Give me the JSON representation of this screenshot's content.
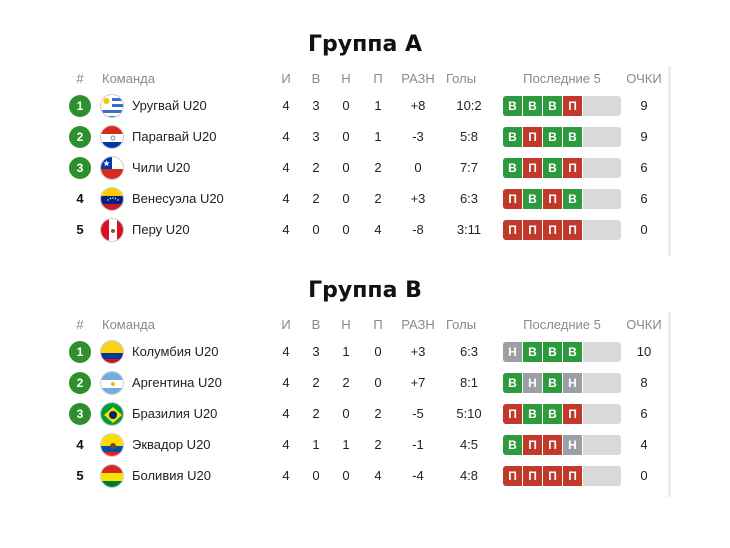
{
  "colors": {
    "win": "#2e9a3e",
    "loss": "#c0392b",
    "draw": "#9aa0a6",
    "rank_badge": "#2e8f2e"
  },
  "headers": {
    "rank": "#",
    "team": "Команда",
    "played": "И",
    "wins": "В",
    "draws": "Н",
    "losses": "П",
    "diff": "РАЗН",
    "goals": "Голы",
    "form": "Последние 5",
    "points": "ОЧКИ"
  },
  "groups": [
    {
      "title": "Группа А",
      "rows": [
        {
          "rank": "1",
          "badge": true,
          "flag": "uruguay-flag-icon",
          "team": "Уругвай U20",
          "played": "4",
          "wins": "3",
          "draws": "0",
          "losses": "1",
          "diff": "+8",
          "goals": "10:2",
          "form": [
            "В",
            "В",
            "В",
            "П"
          ],
          "points": "9"
        },
        {
          "rank": "2",
          "badge": true,
          "flag": "paraguay-flag-icon",
          "team": "Парагвай U20",
          "played": "4",
          "wins": "3",
          "draws": "0",
          "losses": "1",
          "diff": "-3",
          "goals": "5:8",
          "form": [
            "В",
            "П",
            "В",
            "В"
          ],
          "points": "9"
        },
        {
          "rank": "3",
          "badge": true,
          "flag": "chile-flag-icon",
          "team": "Чили U20",
          "played": "4",
          "wins": "2",
          "draws": "0",
          "losses": "2",
          "diff": "0",
          "goals": "7:7",
          "form": [
            "В",
            "П",
            "В",
            "П"
          ],
          "points": "6"
        },
        {
          "rank": "4",
          "badge": false,
          "flag": "venezuela-flag-icon",
          "team": "Венесуэла U20",
          "played": "4",
          "wins": "2",
          "draws": "0",
          "losses": "2",
          "diff": "+3",
          "goals": "6:3",
          "form": [
            "П",
            "В",
            "П",
            "В"
          ],
          "points": "6"
        },
        {
          "rank": "5",
          "badge": false,
          "flag": "peru-flag-icon",
          "team": "Перу U20",
          "played": "4",
          "wins": "0",
          "draws": "0",
          "losses": "4",
          "diff": "-8",
          "goals": "3:11",
          "form": [
            "П",
            "П",
            "П",
            "П"
          ],
          "points": "0"
        }
      ]
    },
    {
      "title": "Группа В",
      "rows": [
        {
          "rank": "1",
          "badge": true,
          "flag": "colombia-flag-icon",
          "team": "Колумбия U20",
          "played": "4",
          "wins": "3",
          "draws": "1",
          "losses": "0",
          "diff": "+3",
          "goals": "6:3",
          "form": [
            "Н",
            "В",
            "В",
            "В"
          ],
          "points": "10"
        },
        {
          "rank": "2",
          "badge": true,
          "flag": "argentina-flag-icon",
          "team": "Аргентина U20",
          "played": "4",
          "wins": "2",
          "draws": "2",
          "losses": "0",
          "diff": "+7",
          "goals": "8:1",
          "form": [
            "В",
            "Н",
            "В",
            "Н"
          ],
          "points": "8"
        },
        {
          "rank": "3",
          "badge": true,
          "flag": "brazil-flag-icon",
          "team": "Бразилия U20",
          "played": "4",
          "wins": "2",
          "draws": "0",
          "losses": "2",
          "diff": "-5",
          "goals": "5:10",
          "form": [
            "П",
            "В",
            "В",
            "П"
          ],
          "points": "6"
        },
        {
          "rank": "4",
          "badge": false,
          "flag": "ecuador-flag-icon",
          "team": "Эквадор U20",
          "played": "4",
          "wins": "1",
          "draws": "1",
          "losses": "2",
          "diff": "-1",
          "goals": "4:5",
          "form": [
            "В",
            "П",
            "П",
            "Н"
          ],
          "points": "4"
        },
        {
          "rank": "5",
          "badge": false,
          "flag": "bolivia-flag-icon",
          "team": "Боливия U20",
          "played": "4",
          "wins": "0",
          "draws": "0",
          "losses": "4",
          "diff": "-4",
          "goals": "4:8",
          "form": [
            "П",
            "П",
            "П",
            "П"
          ],
          "points": "0"
        }
      ]
    }
  ]
}
